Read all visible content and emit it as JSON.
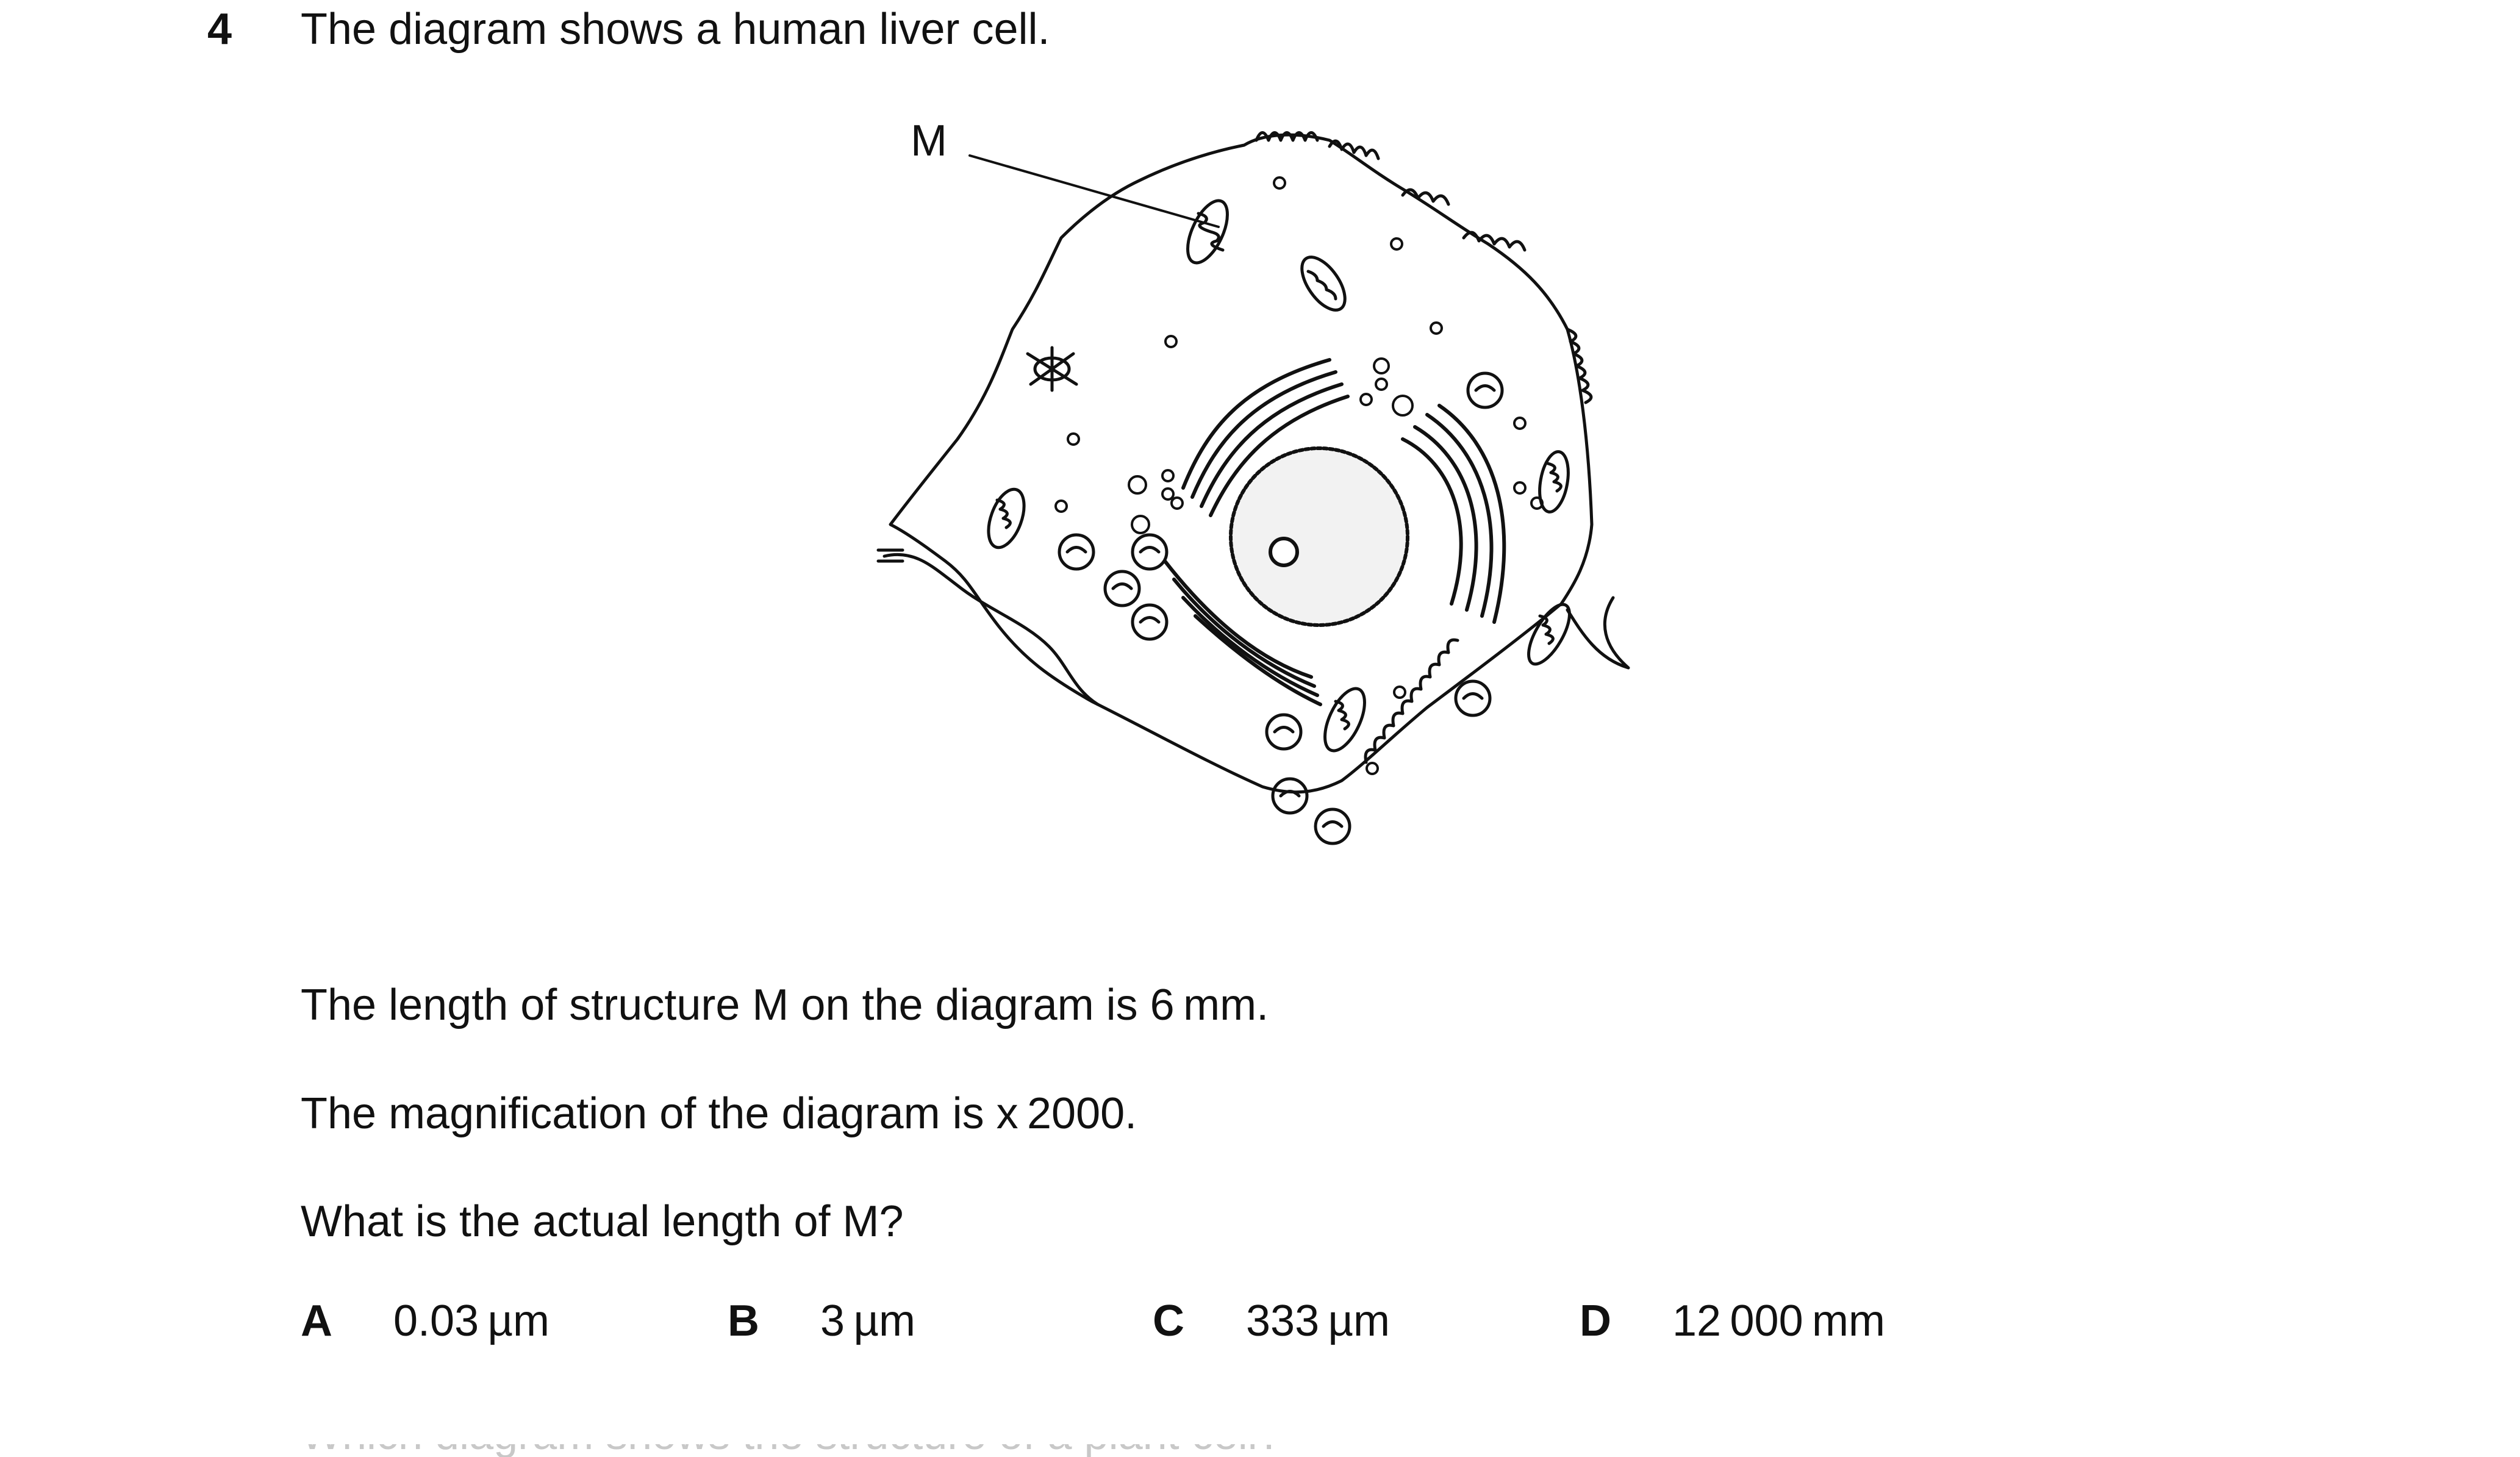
{
  "question": {
    "number": "4",
    "intro": "The diagram shows a human liver cell.",
    "diagram_label": "M",
    "statements": [
      "The length of structure M on the diagram is 6 mm.",
      "The magnification of the diagram is x 2000.",
      "What is the actual length of M?"
    ],
    "options": [
      {
        "letter": "A",
        "value": "0.03 µm"
      },
      {
        "letter": "B",
        "value": "3 µm"
      },
      {
        "letter": "C",
        "value": "333 µm"
      },
      {
        "letter": "D",
        "value": "12 000 mm"
      }
    ]
  },
  "next_question_partial": "Which diagram shows the structure of a plant cell?"
}
